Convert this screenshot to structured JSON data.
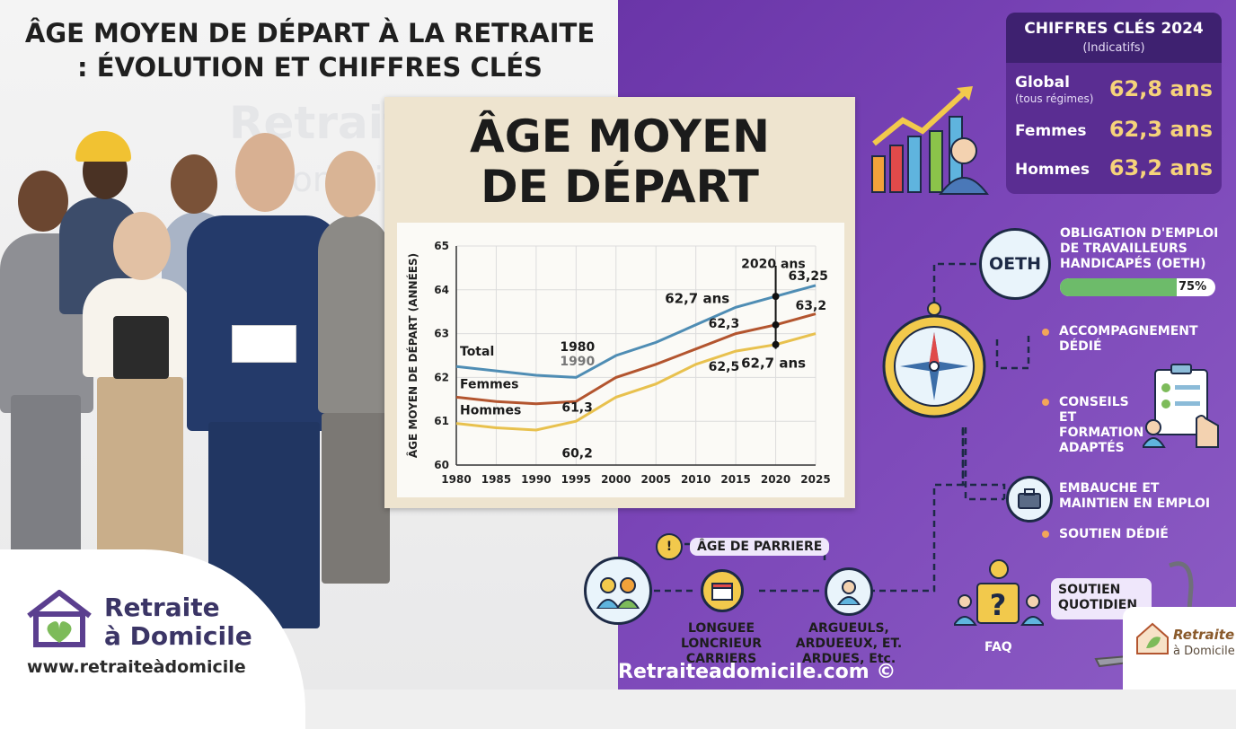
{
  "header": {
    "title_line1": "ÂGE MOYEN DE DÉPART À LA RETRAITE",
    "title_line2": ": ÉVOLUTION ET CHIFFRES CLÉS"
  },
  "watermark": {
    "line1": "Retraite",
    "line2": "à Domicile"
  },
  "panel": {
    "title_line1": "ÂGE MOYEN",
    "title_line2": "DE DÉPART"
  },
  "chart_data": {
    "type": "line",
    "ylabel": "ÂGE MOYEN DE DÉPART (ANNÉES)",
    "xlabel": "",
    "x": [
      1980,
      1985,
      1990,
      1995,
      2000,
      2005,
      2010,
      2015,
      2020,
      2025
    ],
    "xticks": [
      "1980",
      "1985",
      "1990",
      "1995",
      "2000",
      "2005",
      "2010",
      "2015",
      "2020",
      "2025"
    ],
    "yticks": [
      "60",
      "61",
      "62",
      "63",
      "64",
      "65"
    ],
    "ylim": [
      60,
      65
    ],
    "grid": true,
    "series": [
      {
        "name": "Total",
        "color": "#4f8db4",
        "values": [
          62.25,
          62.15,
          62.05,
          62.0,
          62.5,
          62.8,
          63.2,
          63.6,
          63.85,
          64.1
        ]
      },
      {
        "name": "Femmes",
        "color": "#b3552f",
        "values": [
          61.55,
          61.45,
          61.4,
          61.45,
          62.0,
          62.3,
          62.65,
          63.0,
          63.2,
          63.45
        ]
      },
      {
        "name": "Hommes",
        "color": "#e8c14e",
        "values": [
          60.95,
          60.85,
          60.8,
          61.0,
          61.55,
          61.85,
          62.3,
          62.6,
          62.75,
          63.0
        ]
      }
    ],
    "annotations": [
      {
        "text": "1980"
      },
      {
        "text": "1990"
      },
      {
        "text": "61,3"
      },
      {
        "text": "60,2"
      },
      {
        "text": "62,7 ans"
      },
      {
        "text": "62,3"
      },
      {
        "text": "62,5"
      },
      {
        "text": "2020 ans"
      },
      {
        "text": "63,25"
      },
      {
        "text": "63,2"
      },
      {
        "text": "62,7 ans"
      }
    ]
  },
  "logo": {
    "name_line1": "Retraite",
    "name_line2": "à Domicile",
    "url": "www.retraiteàdomicile"
  },
  "key_figures": {
    "title": "CHIFFRES CLÉS 2024",
    "subtitle": "(Indicatifs)",
    "rows": [
      {
        "label": "Global",
        "sublabel": "(tous régimes)",
        "value": "62,8 ans"
      },
      {
        "label": "Femmes",
        "sublabel": "",
        "value": "62,3 ans"
      },
      {
        "label": "Hommes",
        "sublabel": "",
        "value": "63,2 ans"
      }
    ]
  },
  "oeth": {
    "circle_label": "OETH",
    "title": "OBLIGATION D'EMPLOI DE TRAVAILLEURS HANDICAPÉS (OETH)",
    "progress_value": 75,
    "progress_label": "75%"
  },
  "items": {
    "accompagnement": "ACCOMPAGNEMENT DÉDIÉ",
    "conseils": "CONSEILS ET FORMATION ADAPTÉS",
    "embauche": "EMBAUCHE ET MAINTIEN EN EMPLOI",
    "soutien_dedie": "SOUTIEN DÉDIÉ",
    "soutien_quotidien": "SOUTIEN QUOTIDIEN",
    "faq": "FAQ"
  },
  "flow": {
    "pill": "ÂGE DE PARRIERE",
    "step1": "LONGUEE LONCRIEUR CARRIERS",
    "step2": "ARGUEULS, ARDUEEUX, ET. ARDUES, Etc."
  },
  "footer": {
    "url": "Retraiteadomicile.com ©"
  },
  "badge": {
    "line1": "Retraite",
    "line2": "à Domicile"
  },
  "colors": {
    "purple": "#6a35a8",
    "gold": "#f6d37a",
    "navy": "#1d2a46",
    "green": "#6dbb6a"
  }
}
